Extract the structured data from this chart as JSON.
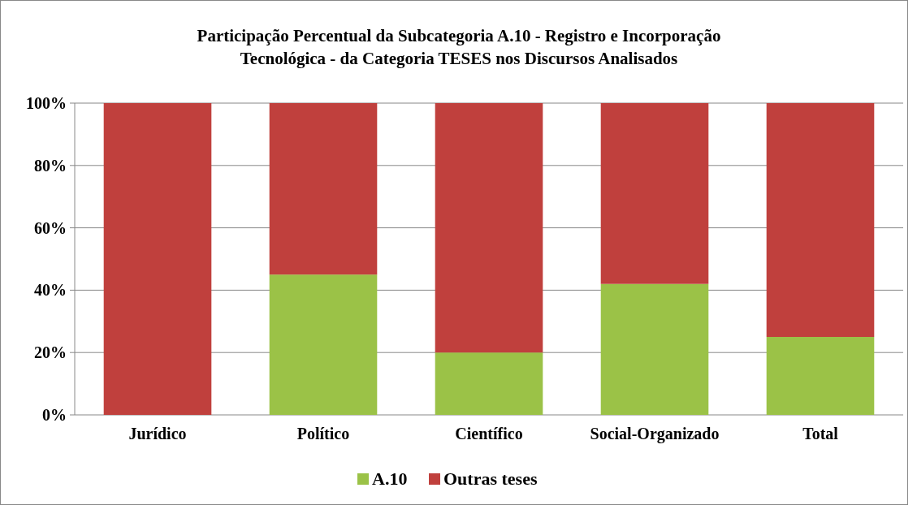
{
  "chart_data": {
    "type": "bar",
    "title": "Participação Percentual da Subcategoria A.10 - Registro e Incorporação Tecnológica  - da Categoria TESES nos Discursos Analisados",
    "categories": [
      "Jurídico",
      "Político",
      "Científico",
      "Social-Organizado",
      "Total"
    ],
    "series": [
      {
        "name": "A.10",
        "color": "#9bc247",
        "values": [
          0,
          45,
          20,
          42,
          25
        ]
      },
      {
        "name": "Outras teses",
        "color": "#c0403d",
        "values": [
          100,
          55,
          80,
          58,
          75
        ]
      }
    ],
    "stacked": true,
    "ylim": [
      0,
      100
    ],
    "yticks": [
      {
        "value": 0,
        "label": "0%"
      },
      {
        "value": 20,
        "label": "20%"
      },
      {
        "value": 40,
        "label": "40%"
      },
      {
        "value": 60,
        "label": "60%"
      },
      {
        "value": 80,
        "label": "80%"
      },
      {
        "value": 100,
        "label": "100%"
      }
    ],
    "grid": "y",
    "legend": "bottom"
  }
}
